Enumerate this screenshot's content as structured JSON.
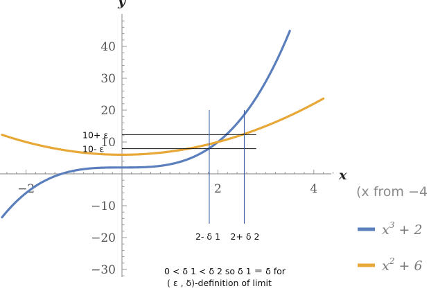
{
  "chart_data": {
    "type": "line",
    "xlabel": "x",
    "ylabel": "y",
    "xlim": [
      -2.5,
      4.5
    ],
    "ylim": [
      -32,
      48
    ],
    "x_ticks": [
      -2,
      2,
      4
    ],
    "x_minor_step": 0.2,
    "y_ticks": [
      -30,
      -20,
      -10,
      10,
      20,
      30,
      40
    ],
    "y_minor_step": 2,
    "range_note": "(x from −4",
    "series": [
      {
        "name": "x^3 + 2",
        "label_base": "x",
        "label_sup": "3",
        "label_rest": " + 2",
        "color": "#5b7fbd",
        "formula": "cubic",
        "x_range": [
          -2.5,
          3.5
        ]
      },
      {
        "name": "x^2 + 6",
        "label_base": "x",
        "label_sup": "2",
        "label_rest": " + 6",
        "color": "#e8a838",
        "formula": "quadratic",
        "x_range": [
          -2.5,
          4.2
        ]
      }
    ],
    "annotations": {
      "h_lines": [
        {
          "y": 12.3,
          "x_from": 0,
          "x_to": 2.8,
          "label": "10+ ε"
        },
        {
          "y": 7.9,
          "x_from": 0,
          "x_to": 2.8,
          "label": "10- ε"
        }
      ],
      "v_lines": [
        {
          "x": 1.82,
          "y_from": -15,
          "y_to": 20,
          "label": "2- δ 1"
        },
        {
          "x": 2.55,
          "y_from": -15,
          "y_to": 20,
          "label": "2+ δ 2"
        }
      ],
      "note_line1": "0 < δ 1 < δ 2    so    δ 1 ＝ δ    for",
      "note_line2": "( ε , δ)-definition of limit"
    }
  }
}
